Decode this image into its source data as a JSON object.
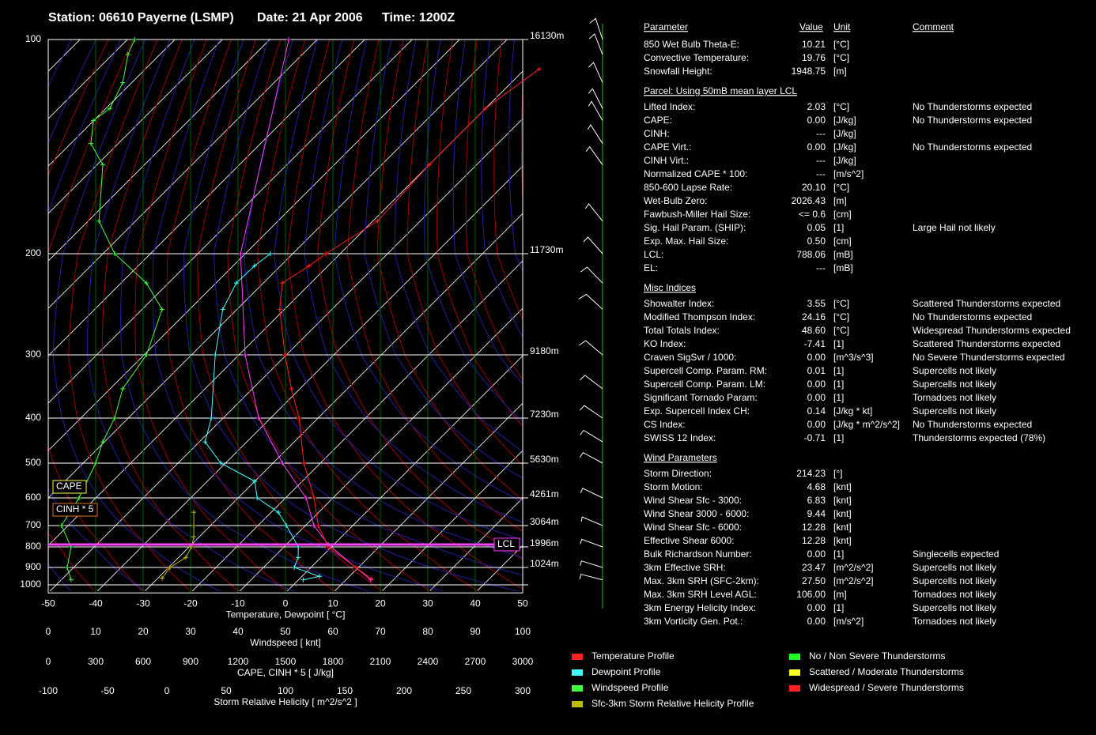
{
  "header": {
    "station": "Station: 06610 Payerne (LSMP)",
    "date": "Date: 21 Apr 2006",
    "time": "Time: 1200Z"
  },
  "chart_data": {
    "type": "skewt",
    "xlabel": "Temperature, Dewpoint  [ °C]",
    "xlim": [
      -50,
      50
    ],
    "xticks": [
      -50,
      -40,
      -30,
      -20,
      -10,
      0,
      10,
      20,
      30,
      40,
      50
    ],
    "ylim": [
      1050,
      100
    ],
    "yticks": [
      100,
      200,
      300,
      400,
      500,
      600,
      700,
      800,
      900,
      1000
    ],
    "log_y": true,
    "height_labels": [
      {
        "value": 100,
        "label": "16130m"
      },
      {
        "value": 200,
        "label": "11730m"
      },
      {
        "value": 300,
        "label": "9180m"
      },
      {
        "value": 400,
        "label": "7230m"
      },
      {
        "value": 500,
        "label": "5630m"
      },
      {
        "value": 600,
        "label": "4261m"
      },
      {
        "value": 700,
        "label": "3064m"
      },
      {
        "value": 800,
        "label": "1996m"
      },
      {
        "value": 900,
        "label": "1024m"
      }
    ],
    "x2label": "Windspeed  [ knt]",
    "x2lim": [
      0,
      100
    ],
    "x2ticks": [
      0,
      10,
      20,
      30,
      40,
      50,
      60,
      70,
      80,
      90,
      100
    ],
    "x3label": "CAPE, CINH * 5  [ J/kg]",
    "x3lim": [
      0,
      3000
    ],
    "x3ticks": [
      0,
      300,
      600,
      900,
      1200,
      1500,
      1800,
      2100,
      2400,
      2700,
      3000
    ],
    "x4label": "Storm Relative Helicity  [ m^2/s^2 ]",
    "x4lim": [
      -100,
      300
    ],
    "x4ticks": [
      -100,
      -50,
      0,
      50,
      100,
      150,
      200,
      250,
      300
    ],
    "series": [
      {
        "name": "Temperature Profile",
        "color": "#ff2020",
        "axis": "x",
        "pressure": [
          965,
          900,
          800,
          700,
          600,
          500,
          400,
          350,
          300,
          250,
          225,
          210,
          200,
          180,
          150,
          125,
          110
        ],
        "values": [
          15.2,
          9.5,
          -0.7,
          -7.3,
          -14,
          -23.5,
          -34,
          -41.8,
          -50.3,
          -61,
          -66,
          -64,
          -63,
          -59,
          -60,
          -60,
          -57
        ]
      },
      {
        "name": "Dewpoint Profile",
        "color": "#40ffff",
        "axis": "x",
        "pressure": [
          970,
          950,
          900,
          850,
          800,
          700,
          650,
          600,
          550,
          500,
          450,
          400,
          300,
          250,
          225,
          210,
          200
        ],
        "values": [
          1,
          3.7,
          -3.5,
          -4.8,
          -7,
          -14,
          -18.5,
          -26,
          -30,
          -41,
          -48.8,
          -52.5,
          -65,
          -73,
          -75.7,
          -75.5,
          -74.7
        ]
      },
      {
        "name": "Windspeed Profile",
        "color": "#40ff40",
        "axis": "x2",
        "pressure": [
          970,
          900,
          800,
          700,
          600,
          500,
          450,
          400,
          350,
          300,
          250,
          225,
          200,
          180,
          150,
          140,
          130,
          125,
          115,
          105,
          100
        ],
        "values": [
          4.8,
          4,
          4.8,
          2.8,
          6.5,
          10,
          11.5,
          14,
          15.7,
          20.7,
          24,
          20.7,
          14,
          10.7,
          11.5,
          9,
          9.5,
          13,
          15.7,
          16.8,
          18.2
        ]
      },
      {
        "name": "Sfc-3km Storm Relative Helicity Profile",
        "color": "#bcbc00",
        "axis": "x4",
        "pressure": [
          960,
          900,
          850,
          800,
          750,
          700,
          650
        ],
        "values": [
          -4,
          2.7,
          16,
          20.7,
          22.7,
          22.7,
          22.7
        ]
      }
    ],
    "parcel": {
      "color": "#ff40ff",
      "pressure": [
        970,
        788,
        700,
        600,
        500,
        400,
        300,
        200,
        100
      ],
      "values": [
        15.2,
        -1.2,
        -8.2,
        -15.7,
        -28,
        -42.5,
        -58.7,
        -81,
        -116
      ]
    },
    "annotations": [
      {
        "text": "CAPE",
        "color": "#ffff40"
      },
      {
        "text": "CINH * 5",
        "color": "#e07020"
      },
      {
        "text": "LCL",
        "color": "#ff40ff"
      }
    ],
    "legend_thresholds": [
      {
        "label": "No / Non Severe Thunderstorms",
        "color": "#20ff20"
      },
      {
        "label": "Scattered / Moderate Thunderstorms",
        "color": "#ffff20"
      },
      {
        "label": "Widespread / Severe Thunderstorms",
        "color": "#ff2020"
      }
    ]
  },
  "table": {
    "header": [
      "Parameter",
      "Value",
      "Unit",
      "Comment"
    ],
    "groups": [
      {
        "rows": [
          {
            "parameter": "850 Wet Bulb Theta-E:",
            "value": "10.21",
            "unit": "[°C]",
            "color": "#20ff20"
          },
          {
            "parameter": "Convective Temperature:",
            "value": "19.76",
            "unit": "[°C]",
            "color": "#ffff20"
          },
          {
            "parameter": "Snowfall Height:",
            "value": "1948.75",
            "unit": "[m]",
            "color": "#ffffff"
          }
        ]
      },
      {
        "title": "Parcel: Using 50mB mean layer LCL",
        "rows": [
          {
            "parameter": "Lifted Index:",
            "value": "2.03",
            "unit": "[°C]",
            "comment": "No Thunderstorms expected",
            "color": "#20ff20"
          },
          {
            "parameter": "CAPE:",
            "value": "0.00",
            "unit": "[J/kg]",
            "comment": "No Thunderstorms expected",
            "color": "#20ff20"
          },
          {
            "parameter": "CINH:",
            "value": "---",
            "unit": "[J/kg]",
            "color": "#ffffff"
          },
          {
            "parameter": "CAPE Virt.:",
            "value": "0.00",
            "unit": "[J/kg]",
            "comment": "No Thunderstorms expected",
            "color": "#20ff20"
          },
          {
            "parameter": "CINH Virt.:",
            "value": "---",
            "unit": "[J/kg]",
            "color": "#ffffff"
          },
          {
            "parameter": "Normalized CAPE * 100:",
            "value": "---",
            "unit": "[m/s^2]",
            "color": "#ffffff"
          },
          {
            "parameter": "850-600 Lapse Rate:",
            "value": "20.10",
            "unit": "[°C]",
            "color": "#ff2020"
          },
          {
            "parameter": "Wet-Bulb Zero:",
            "value": "2026.43",
            "unit": "[m]",
            "color": "#20ff20"
          },
          {
            "parameter": "Fawbush-Miller Hail Size:",
            "value": "<= 0.6",
            "unit": "[cm]",
            "color": "#20ff20"
          },
          {
            "parameter": "Sig. Hail Param. (SHIP):",
            "value": "0.05",
            "unit": "[1]",
            "comment": "Large Hail not likely",
            "color": "#20ff20"
          },
          {
            "parameter": "Exp. Max. Hail Size:",
            "value": "0.50",
            "unit": "[cm]",
            "color": "#20ff20"
          },
          {
            "parameter": "LCL:",
            "value": "788.06",
            "unit": "[mB]",
            "color": "#ffffff"
          },
          {
            "parameter": "EL:",
            "value": "---",
            "unit": "[mB]",
            "color": "#ffffff"
          }
        ]
      },
      {
        "title": "Misc Indices",
        "rows": [
          {
            "parameter": "Showalter Index:",
            "value": "3.55",
            "unit": "[°C]",
            "comment": "Scattered Thunderstorms expected",
            "color": "#ffff20"
          },
          {
            "parameter": "Modified Thompson Index:",
            "value": "24.16",
            "unit": "[°C]",
            "comment": "No Thunderstorms expected",
            "color": "#20ff20"
          },
          {
            "parameter": "Total Totals Index:",
            "value": "48.60",
            "unit": "[°C]",
            "comment": "Widespread Thunderstorms expected",
            "color": "#ff2020"
          },
          {
            "parameter": "KO Index:",
            "value": "-7.41",
            "unit": "[1]",
            "comment": "Scattered Thunderstorms expected",
            "color": "#ffff20"
          },
          {
            "parameter": "Craven SigSvr / 1000:",
            "value": "0.00",
            "unit": "[m^3/s^3]",
            "comment": "No Severe Thunderstorms expected",
            "color": "#20ff20"
          },
          {
            "parameter": "Supercell Comp. Param. RM:",
            "value": "0.01",
            "unit": "[1]",
            "comment": "Supercells not likely",
            "color": "#20ff20"
          },
          {
            "parameter": "Supercell Comp. Param. LM:",
            "value": "0.00",
            "unit": "[1]",
            "comment": "Supercells not likely",
            "color": "#20ff20"
          },
          {
            "parameter": "Significant Tornado Param:",
            "value": "0.00",
            "unit": "[1]",
            "comment": "Tornadoes not likely",
            "color": "#20ff20"
          },
          {
            "parameter": "Exp. Supercell Index CH:",
            "value": "0.14",
            "unit": "[J/kg * kt]",
            "comment": "Supercells not likely",
            "color": "#20ff20"
          },
          {
            "parameter": "CS Index:",
            "value": "0.00",
            "unit": "[J/kg * m^2/s^2]",
            "comment": "No Thunderstorms expected",
            "color": "#20ff20"
          },
          {
            "parameter": "SWISS 12 Index:",
            "value": "-0.71",
            "unit": "[1]",
            "comment": "Thunderstorms expected (78%)",
            "color": "#ff2020"
          }
        ]
      },
      {
        "title": "Wind Parameters",
        "rows": [
          {
            "parameter": "Storm Direction:",
            "value": "214.23",
            "unit": "[°]",
            "color": "#ffffff"
          },
          {
            "parameter": "Storm Motion:",
            "value": "4.68",
            "unit": "[knt]",
            "color": "#20ff20"
          },
          {
            "parameter": "Wind Shear Sfc - 3000:",
            "value": "6.83",
            "unit": "[knt]",
            "color": "#20ff20"
          },
          {
            "parameter": "Wind Shear 3000 - 6000:",
            "value": "9.44",
            "unit": "[knt]",
            "color": "#20ff20"
          },
          {
            "parameter": "Wind Shear Sfc - 6000:",
            "value": "12.28",
            "unit": "[knt]",
            "color": "#20ff20"
          },
          {
            "parameter": "Effective Shear 6000:",
            "value": "12.28",
            "unit": "[knt]",
            "color": "#20ff20"
          },
          {
            "parameter": "Bulk Richardson Number:",
            "value": "0.00",
            "unit": "[1]",
            "comment": "Singlecells expected",
            "color": "#20ff20"
          },
          {
            "parameter": "3km Effective SRH:",
            "value": "23.47",
            "unit": "[m^2/s^2]",
            "comment": "Supercells not likely",
            "color": "#20ff20"
          },
          {
            "parameter": "Max. 3km SRH (SFC-2km):",
            "value": "27.50",
            "unit": "[m^2/s^2]",
            "comment": "Supercells not likely",
            "color": "#20ff20"
          },
          {
            "parameter": "Max. 3km SRH Level AGL:",
            "value": "106.00",
            "unit": "[m]",
            "comment": "Tornadoes not likely",
            "color": "#20ff20"
          },
          {
            "parameter": "3km Energy Helicity Index:",
            "value": "0.00",
            "unit": "[1]",
            "comment": "Supercells not likely",
            "color": "#20ff20"
          },
          {
            "parameter": "3km Vorticity Gen. Pot.:",
            "value": "0.00",
            "unit": "[m/s^2]",
            "comment": "Tornadoes not likely",
            "color": "#20ff20"
          }
        ]
      }
    ]
  }
}
